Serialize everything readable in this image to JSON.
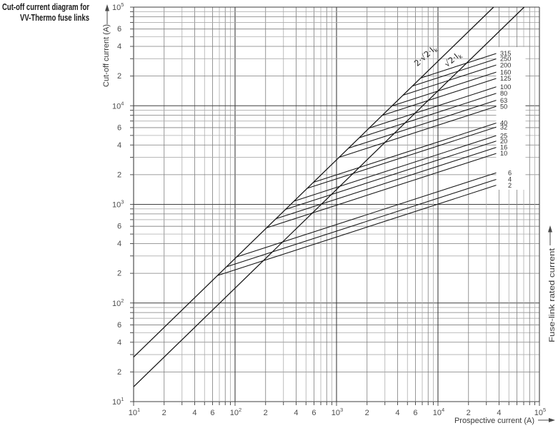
{
  "title": {
    "line1": "Cut-off current diagram for",
    "line2": "VV-Thermo fuse links"
  },
  "x_axis": {
    "caption": "Prospective current (A)"
  },
  "y_axis": {
    "caption": "Cut-off current (A)"
  },
  "right_axis": {
    "caption": "Fuse-link rated current"
  },
  "chart_data": {
    "type": "line",
    "title": "Cut-off current diagram for VV-Thermo fuse links",
    "xlabel": "Prospective current (A)",
    "ylabel": "Cut-off current (A)",
    "right_label": "Fuse-link rated current",
    "log_x": true,
    "log_y": true,
    "xlim": [
      10,
      100000
    ],
    "ylim": [
      10,
      100000
    ],
    "grid": "log-log, minor gridlines at 2-9 each decade",
    "grid_minors": [
      2,
      3,
      4,
      5,
      6,
      7,
      8,
      9
    ],
    "x_ticks": {
      "decades": [
        1,
        2,
        3,
        4,
        5
      ],
      "minor_labeled": [
        [
          2,
          4,
          6
        ],
        [
          2,
          4,
          6
        ],
        [
          2,
          4,
          6
        ],
        [
          2,
          4
        ]
      ]
    },
    "y_ticks": {
      "decades": [
        1,
        2,
        3,
        4,
        5
      ],
      "minor_labeled": [
        [
          2,
          4,
          6
        ],
        [
          2,
          4,
          6
        ],
        [
          2,
          4,
          6
        ],
        [
          2,
          4,
          6
        ]
      ]
    },
    "reference_lines": [
      {
        "label_pre": "2·√2·I",
        "label_sub": "k",
        "factor": 2.8284
      },
      {
        "label_pre": "√2·I",
        "label_sub": "k",
        "factor": 1.4142
      }
    ],
    "fuse_link_curves": {
      "slope_loglog": 0.3333,
      "prospective_at_label": 38000,
      "series": [
        {
          "rating": "315",
          "cutoff_at_label": 34000
        },
        {
          "rating": "250",
          "cutoff_at_label": 30000
        },
        {
          "rating": "200",
          "cutoff_at_label": 26000
        },
        {
          "rating": "160",
          "cutoff_at_label": 22000
        },
        {
          "rating": "125",
          "cutoff_at_label": 19000
        },
        {
          "rating": "100",
          "cutoff_at_label": 15600
        },
        {
          "rating": "80",
          "cutoff_at_label": 13400
        },
        {
          "rating": "63",
          "cutoff_at_label": 11400
        },
        {
          "rating": "50",
          "cutoff_at_label": 9900
        },
        {
          "rating": "40",
          "cutoff_at_label": 6700
        },
        {
          "rating": "32",
          "cutoff_at_label": 6100
        },
        {
          "rating": "25",
          "cutoff_at_label": 5000
        },
        {
          "rating": "20",
          "cutoff_at_label": 4400
        },
        {
          "rating": "16",
          "cutoff_at_label": 3800
        },
        {
          "rating": "10",
          "cutoff_at_label": 3300
        },
        {
          "rating": "6",
          "cutoff_at_label": 2100
        },
        {
          "rating": "4",
          "cutoff_at_label": 1800
        },
        {
          "rating": "2",
          "cutoff_at_label": 1570
        }
      ]
    }
  }
}
